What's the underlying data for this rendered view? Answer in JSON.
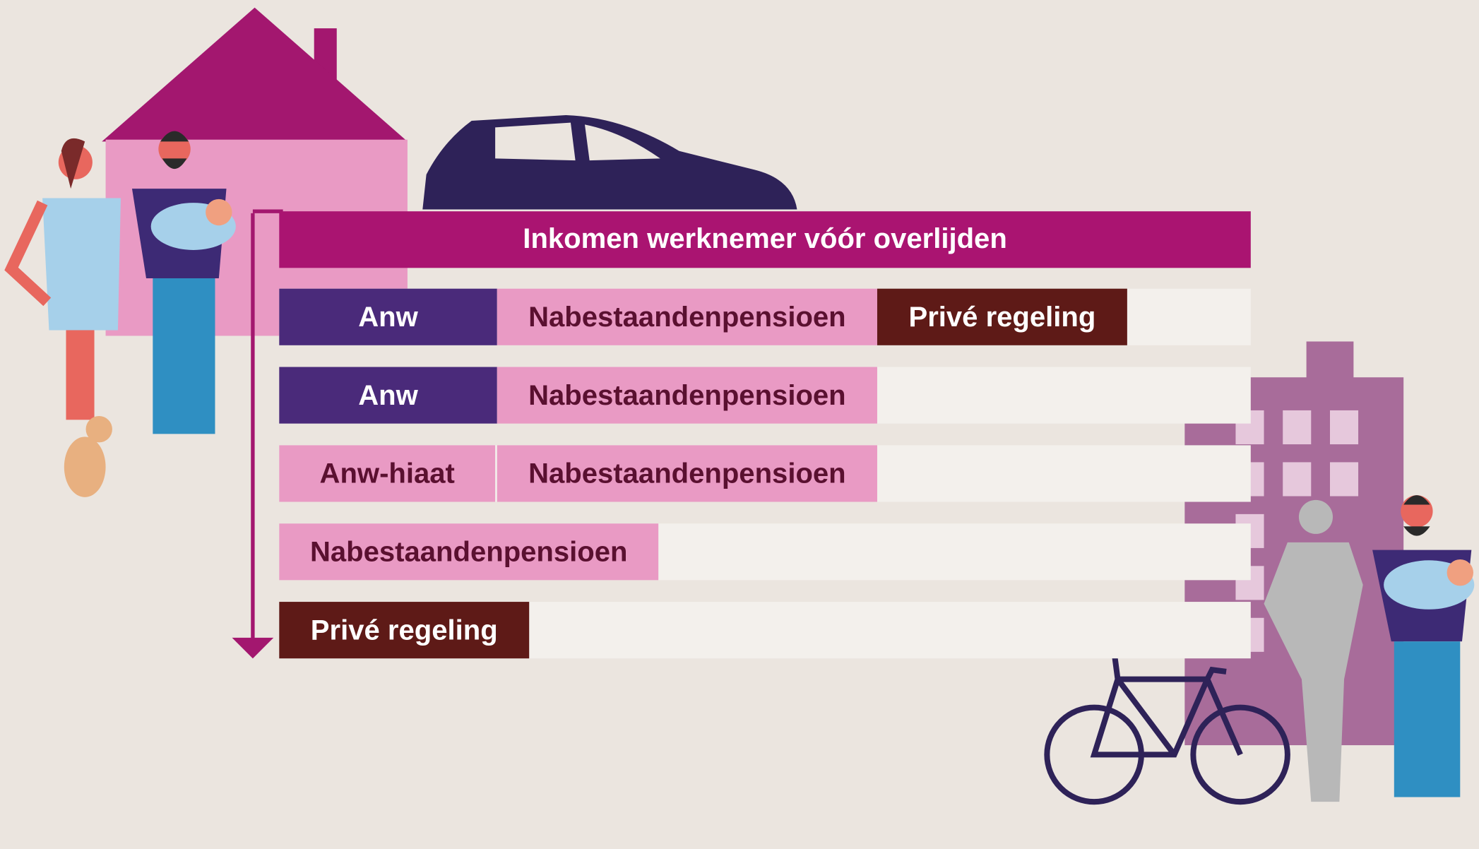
{
  "header": {
    "title": "Inkomen werknemer vóór overlijden"
  },
  "rows": [
    [
      "Anw",
      "Nabestaandenpensioen",
      "Privé regeling"
    ],
    [
      "Anw",
      "Nabestaandenpensioen"
    ],
    [
      "Anw-hiaat",
      "Nabestaandenpensioen"
    ],
    [
      "Nabestaandenpensioen"
    ],
    [
      "Privé regeling"
    ]
  ]
}
